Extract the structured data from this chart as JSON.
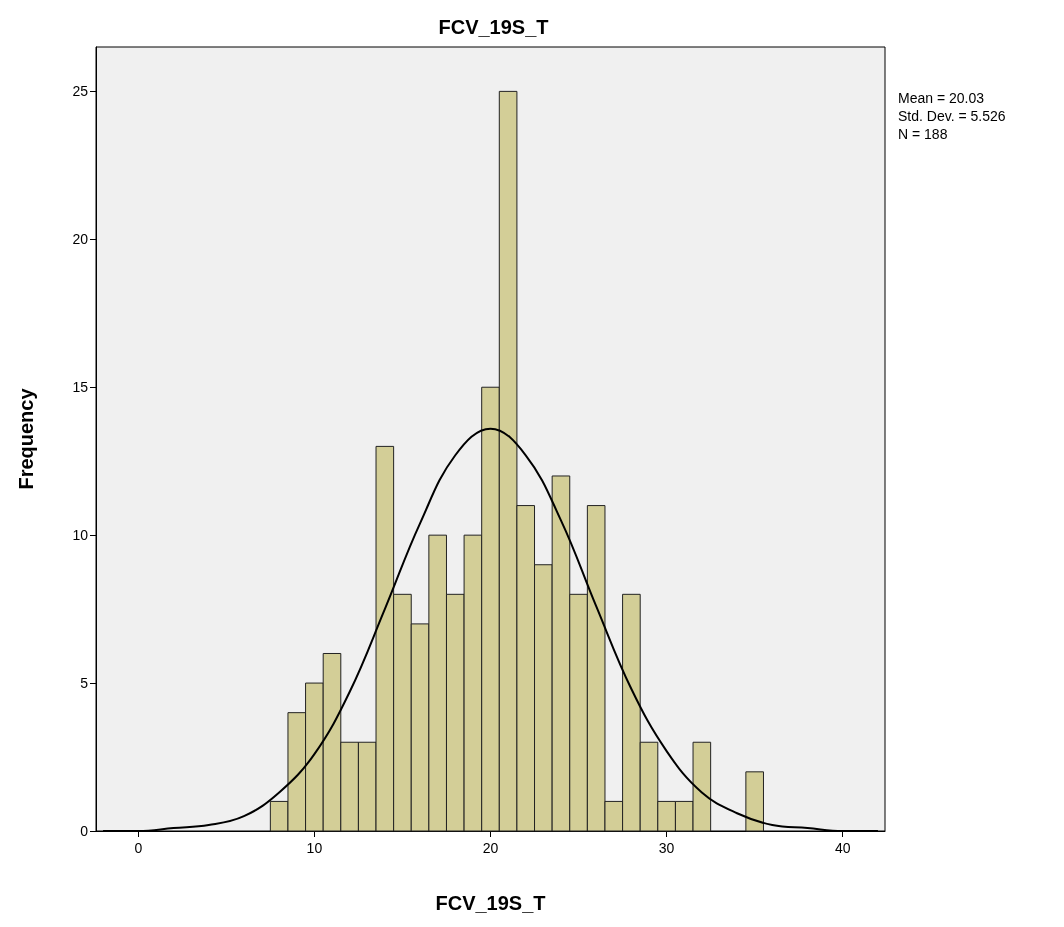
{
  "chart_data": {
    "type": "histogram",
    "title": "FCV_19S_T",
    "xlabel": "FCV_19S_T",
    "ylabel": "Frequency",
    "bins": [
      7.5,
      8.5,
      9.5,
      10.5,
      11.5,
      12.5,
      13.5,
      14.5,
      15.5,
      16.5,
      17.5,
      18.5,
      19.5,
      20.5,
      21.5,
      22.5,
      23.5,
      24.5,
      25.5,
      26.5,
      27.5,
      28.5,
      29.5,
      30.5,
      31.5,
      32.5,
      33.5,
      34.5,
      35.5
    ],
    "values": [
      1,
      4,
      5,
      6,
      3,
      3,
      13,
      8,
      7,
      10,
      8,
      10,
      15,
      25,
      11,
      9,
      12,
      8,
      11,
      1,
      8,
      3,
      1,
      1,
      3,
      0,
      0,
      2
    ],
    "color": "#d3ce97",
    "series": [
      {
        "type": "line",
        "color": "#000000",
        "x": [
          -2,
          0,
          2,
          4,
          6,
          8,
          10,
          12,
          14,
          16,
          18,
          20,
          22,
          24,
          26,
          28,
          30,
          32,
          34,
          36,
          38,
          40,
          42
        ],
        "values": [
          0,
          0,
          0.1,
          0.2,
          0.5,
          1.3,
          2.6,
          4.7,
          7.5,
          10.4,
          12.7,
          13.6,
          12.7,
          10.5,
          7.6,
          4.8,
          2.7,
          1.3,
          0.6,
          0.2,
          0.1,
          0,
          0
        ]
      }
    ],
    "xlim": [
      -2.4,
      42.4
    ],
    "xticks": [
      0,
      10,
      20,
      30,
      40
    ],
    "ylim": [
      0,
      26.5
    ],
    "yticks": [
      0,
      5,
      10,
      15,
      20,
      25
    ],
    "grid": false,
    "annotations": [
      "Mean = 20.03",
      "Std. Dev. = 5.526",
      "N = 188"
    ]
  }
}
